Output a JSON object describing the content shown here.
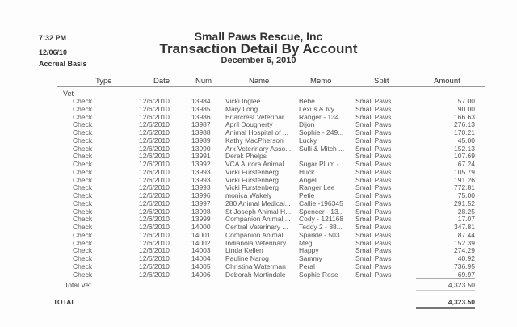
{
  "header": {
    "time": "7:32 PM",
    "date": "12/06/10",
    "basis": "Accrual Basis",
    "company": "Small Paws Rescue, Inc",
    "title": "Transaction Detail By Account",
    "subtitle": "December 6, 2010"
  },
  "columns": [
    "Type",
    "Date",
    "Num",
    "Name",
    "Memo",
    "Split",
    "Amount"
  ],
  "account": "Vet",
  "rows": [
    [
      "Check",
      "12/6/2010",
      "13984",
      "Vicki Inglee",
      "Bebe",
      "Small Paws",
      "57.00"
    ],
    [
      "Check",
      "12/6/2010",
      "13985",
      "Mary Long",
      "Lexus & Ivy ...",
      "Small Paws",
      "90.00"
    ],
    [
      "Check",
      "12/6/2010",
      "13986",
      "Briarcrest Veterinar...",
      "Ranger - 134...",
      "Small Paws",
      "166.63"
    ],
    [
      "Check",
      "12/6/2010",
      "13987",
      "April Dougherty",
      "Dijon",
      "Small Paws",
      "276.13"
    ],
    [
      "Check",
      "12/6/2010",
      "13988",
      "Animal Hospital of ...",
      "Sophie - 249...",
      "Small Paws",
      "170.21"
    ],
    [
      "Check",
      "12/6/2010",
      "13989",
      "Kathy MacPherson",
      "Lucky",
      "Small Paws",
      "45.00"
    ],
    [
      "Check",
      "12/6/2010",
      "13990",
      "Ark Veterinary Asso...",
      "Sulli & Mitch ...",
      "Small Paws",
      "152.13"
    ],
    [
      "Check",
      "12/6/2010",
      "13991",
      "Derek Phelps",
      "",
      "Small Paws",
      "107.69"
    ],
    [
      "Check",
      "12/6/2010",
      "13992",
      "VCA Aurora Animal...",
      "Sugar Plum -...",
      "Small Paws",
      "67.24"
    ],
    [
      "Check",
      "12/6/2010",
      "13993",
      "Vicki Furstenberg",
      "Huck",
      "Small Paws",
      "105.79"
    ],
    [
      "Check",
      "12/6/2010",
      "13993",
      "Vicki Furstenberg",
      "Angel",
      "Small Paws",
      "191.26"
    ],
    [
      "Check",
      "12/6/2010",
      "13993",
      "Vicki Furstenberg",
      "Ranger Lee",
      "Small Paws",
      "772.81"
    ],
    [
      "Check",
      "12/6/2010",
      "13996",
      "monica Wakely",
      "Petie",
      "Small Paws",
      "75.00"
    ],
    [
      "Check",
      "12/6/2010",
      "13997",
      "280 Animal Medical...",
      "Callie -196345",
      "Small Paws",
      "291.52"
    ],
    [
      "Check",
      "12/6/2010",
      "13998",
      "St Joseph Animal H...",
      "Spencer - 13...",
      "Small Paws",
      "28.25"
    ],
    [
      "Check",
      "12/6/2010",
      "13999",
      "Companion Animal ...",
      "Cody - 121168",
      "Small Paws",
      "17.07"
    ],
    [
      "Check",
      "12/6/2010",
      "14000",
      "Central Veterinary ...",
      "Teddy 2 - 88...",
      "Small Paws",
      "347.81"
    ],
    [
      "Check",
      "12/6/2010",
      "14001",
      "Companion Animal ...",
      "Sparkle - 503...",
      "Small Paws",
      "87.44"
    ],
    [
      "Check",
      "12/6/2010",
      "14002",
      "Indianola Veterinary...",
      "Meg",
      "Small Paws",
      "152.39"
    ],
    [
      "Check",
      "12/6/2010",
      "14003",
      "Linda Kellen",
      "Happy",
      "Small Paws",
      "274.29"
    ],
    [
      "Check",
      "12/6/2010",
      "14004",
      "Pauline Narog",
      "Sammy",
      "Small Paws",
      "40.92"
    ],
    [
      "Check",
      "12/6/2010",
      "14005",
      "Christina Waterman",
      "Peral",
      "Small Paws",
      "736.95"
    ],
    [
      "Check",
      "12/6/2010",
      "14006",
      "Deborah Martindale",
      "Sophie Rose",
      "Small Paws",
      "69.97"
    ]
  ],
  "total_vet": {
    "label": "Total Vet",
    "amount": "4,323.50"
  },
  "total": {
    "label": "TOTAL",
    "amount": "4,323.50"
  }
}
